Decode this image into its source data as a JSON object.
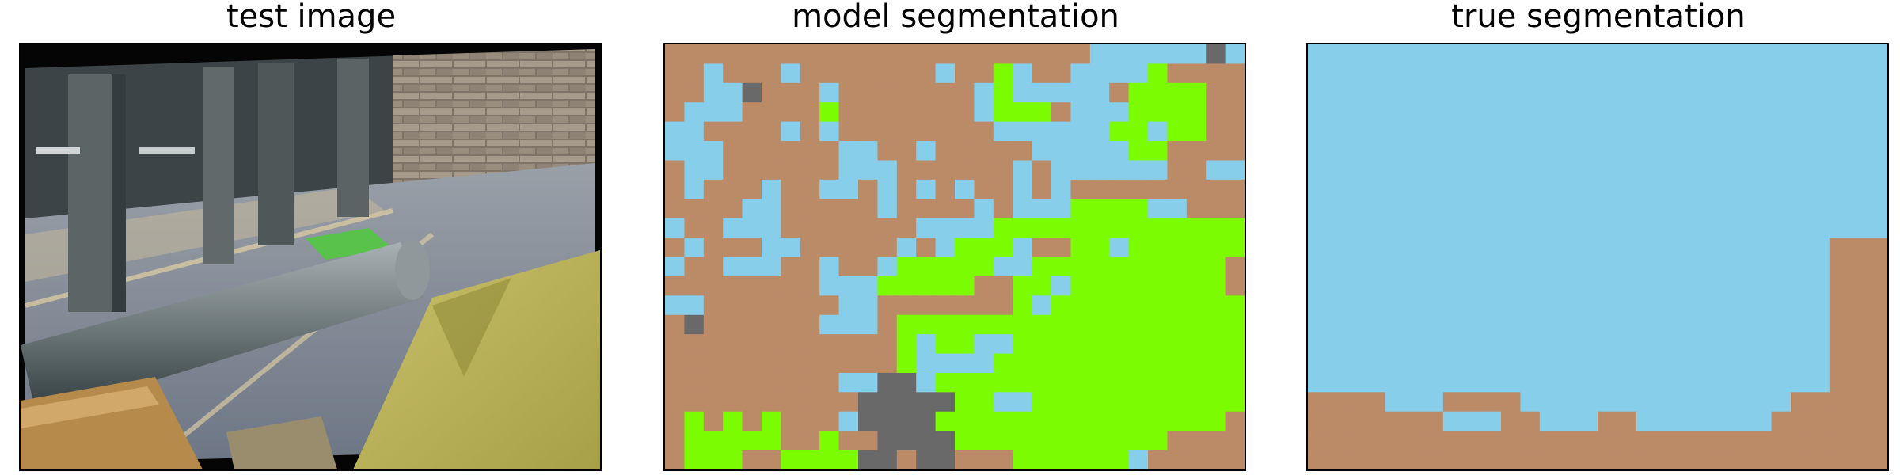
{
  "panels": [
    {
      "title": "test image"
    },
    {
      "title": "model segmentation"
    },
    {
      "title": "true segmentation"
    }
  ],
  "legend_colors": {
    "brown": "#bb8b68",
    "blue": "#87ceeb",
    "green": "#7cfc00",
    "gray": "#696969"
  },
  "segmentation": {
    "palette": [
      "#bb8b68",
      "#87ceeb",
      "#7cfc00",
      "#696969"
    ],
    "model_rows": [
      "000000000000000000000011111131",
      "001000100000001002100111120000",
      "001130001000000012111110222200",
      "011100002000000012220111222200",
      "110000101000000001111112212200",
      "111000000110010000011111220000",
      "011000000111000000101111110011",
      "010001001101010100101000000000",
      "000011000001000010111222211000",
      "100111000000011112222222222222",
      "010001100000101222100221222222",
      "100111001001222221122222222220",
      "000000001112222200221222222220",
      "110000000110000000212222222222",
      "030000001110222222222222222222",
      "000000000000212211222222222222",
      "000000000000211112222222222222",
      "000000000113312222222222222222",
      "000000000033333221122222222222",
      "020202000133332222222222222220",
      "022222002003333222222222220000",
      "022200222233033000222222100000"
    ],
    "true_rows": [
      "111111111111111111111111111111",
      "111111111111111111111111111111",
      "111111111111111111111111111111",
      "111111111111111111111111111111",
      "111111111111111111111111111111",
      "111111111111111111111111111111",
      "111111111111111111111111111111",
      "111111111111111111111111111111",
      "111111111111111111111111111111",
      "111111111111111111111111111111",
      "111111111111111111111111111000",
      "111111111111111111111111111000",
      "111111111111111111111111111000",
      "111111111111111111111111111000",
      "111111111111111111111111111000",
      "111111111111111111111111111000",
      "111111111111111111111111111000",
      "111111111111111111111111111000",
      "000011100001111111111111100000",
      "000000011100111001111111000000",
      "000000000000000000000000000000",
      "000000000000000000000000000000"
    ]
  }
}
